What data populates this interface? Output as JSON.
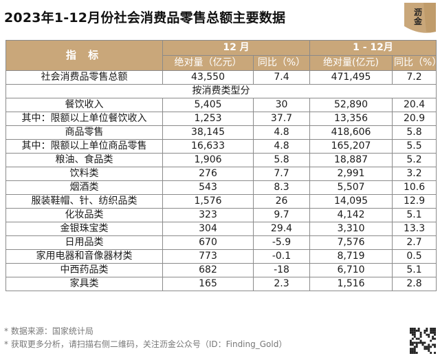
{
  "title": "2023年1-12月份社会消费品零售总额主要数据",
  "logo": {
    "line1": "沥",
    "line2": "金",
    "icon": "gold-logo-icon"
  },
  "table": {
    "header": {
      "indicator": "指 标",
      "group_month": "12 月",
      "group_ytd": "1 - 12月",
      "abs_label": "绝对量（亿元）",
      "yoy_label": "同比（%）",
      "abs_label_2": "绝对量(亿元)",
      "yoy_label_2": "同比（%）"
    },
    "total": {
      "label": "社会消费品零售总额",
      "m_abs": "43,550",
      "m_yoy": "7.4",
      "y_abs": "471,495",
      "y_yoy": "7.2"
    },
    "section_label": "按消费类型分",
    "rows": [
      {
        "label": "餐饮收入",
        "m_abs": "5,405",
        "m_yoy": "30",
        "y_abs": "52,890",
        "y_yoy": "20.4"
      },
      {
        "label": "其中：限额以上单位餐饮收入",
        "m_abs": "1,253",
        "m_yoy": "37.7",
        "y_abs": "13,356",
        "y_yoy": "20.9"
      },
      {
        "label": "商品零售",
        "m_abs": "38,145",
        "m_yoy": "4.8",
        "y_abs": "418,606",
        "y_yoy": "5.8"
      },
      {
        "label": "其中：限额以上单位商品零售",
        "m_abs": "16,633",
        "m_yoy": "4.8",
        "y_abs": "165,207",
        "y_yoy": "5.5"
      },
      {
        "label": "粮油、食品类",
        "m_abs": "1,906",
        "m_yoy": "5.8",
        "y_abs": "18,887",
        "y_yoy": "5.2"
      },
      {
        "label": "饮料类",
        "m_abs": "276",
        "m_yoy": "7.7",
        "y_abs": "2,991",
        "y_yoy": "3.2"
      },
      {
        "label": "烟酒类",
        "m_abs": "543",
        "m_yoy": "8.3",
        "y_abs": "5,507",
        "y_yoy": "10.6"
      },
      {
        "label": "服装鞋帽、针、纺织品类",
        "m_abs": "1,576",
        "m_yoy": "26",
        "y_abs": "14,095",
        "y_yoy": "12.9"
      },
      {
        "label": "化妆品类",
        "m_abs": "323",
        "m_yoy": "9.7",
        "y_abs": "4,142",
        "y_yoy": "5.1"
      },
      {
        "label": "金银珠宝类",
        "m_abs": "304",
        "m_yoy": "29.4",
        "y_abs": "3,310",
        "y_yoy": "13.3"
      },
      {
        "label": "日用品类",
        "m_abs": "670",
        "m_yoy": "-5.9",
        "y_abs": "7,576",
        "y_yoy": "2.7"
      },
      {
        "label": "家用电器和音像器材类",
        "m_abs": "773",
        "m_yoy": "-0.1",
        "y_abs": "8,719",
        "y_yoy": "0.5"
      },
      {
        "label": "中西药品类",
        "m_abs": "682",
        "m_yoy": "-18",
        "y_abs": "6,710",
        "y_yoy": "5.1"
      },
      {
        "label": "家具类",
        "m_abs": "165",
        "m_yoy": "2.3",
        "y_abs": "1,516",
        "y_yoy": "2.8"
      }
    ]
  },
  "notes": {
    "source": "* 数据来源：国家统计局",
    "more": "* 获取更多分析，请扫描右侧二维码，关注沥金公众号（ID：Finding_Gold）"
  },
  "colors": {
    "header_bg": "#c9a77a",
    "header_text": "#ffffff",
    "logo_accent": "#c9a77a"
  }
}
